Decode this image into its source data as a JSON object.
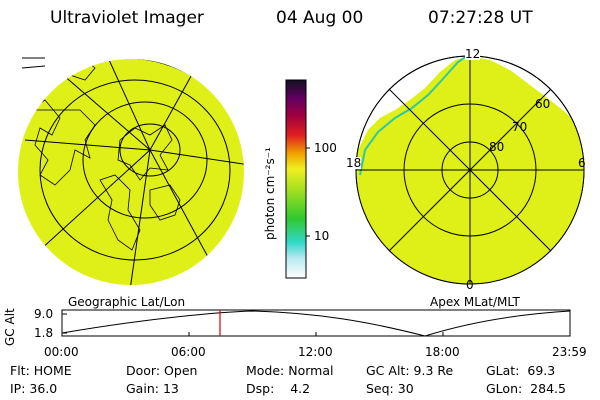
{
  "header": {
    "title": "Ultraviolet Imager",
    "date": "04 Aug 00",
    "time": "07:27:28 UT"
  },
  "colorbar": {
    "label": "photon cm⁻²s⁻¹",
    "ticks": [
      "100",
      "10"
    ]
  },
  "geo_panel": {
    "caption": "Geographic Lat/Lon"
  },
  "polar_panel": {
    "caption": "Apex MLat/MLT",
    "mlt_labels": {
      "top": "12",
      "left": "18",
      "right": "6",
      "bottom": "0"
    },
    "lat_labels": [
      "60",
      "70",
      "80"
    ]
  },
  "altitude_plot": {
    "ylabel": "GC Alt",
    "yticks": [
      "9.0",
      "1.8"
    ],
    "xticks": [
      "00:00",
      "06:00",
      "12:00",
      "18:00",
      "23:59"
    ],
    "marker_time": "07:27:28",
    "marker_color": "#e00000"
  },
  "info": {
    "row1": [
      {
        "label": "Flt:",
        "value": "HOME"
      },
      {
        "label": "Door:",
        "value": "Open"
      },
      {
        "label": "Mode:",
        "value": "Normal"
      },
      {
        "label": "GC Alt:",
        "value": "9.3 Re"
      },
      {
        "label": "GLat:",
        "value": "69.3"
      }
    ],
    "row2": [
      {
        "label": "IP:",
        "value": "36.0"
      },
      {
        "label": "Gain:",
        "value": "13"
      },
      {
        "label": "Dsp:",
        "value": "4.2"
      },
      {
        "label": "Seq:",
        "value": "30"
      },
      {
        "label": "GLon:",
        "value": "284.5"
      }
    ]
  },
  "colors": {
    "image_fill": "#dff018",
    "colorbar": [
      "#ffffff",
      "#b0e8f0",
      "#30d8c8",
      "#30c830",
      "#a8e020",
      "#f0f020",
      "#f0a000",
      "#e02020",
      "#a00040",
      "#600060",
      "#101020"
    ]
  }
}
